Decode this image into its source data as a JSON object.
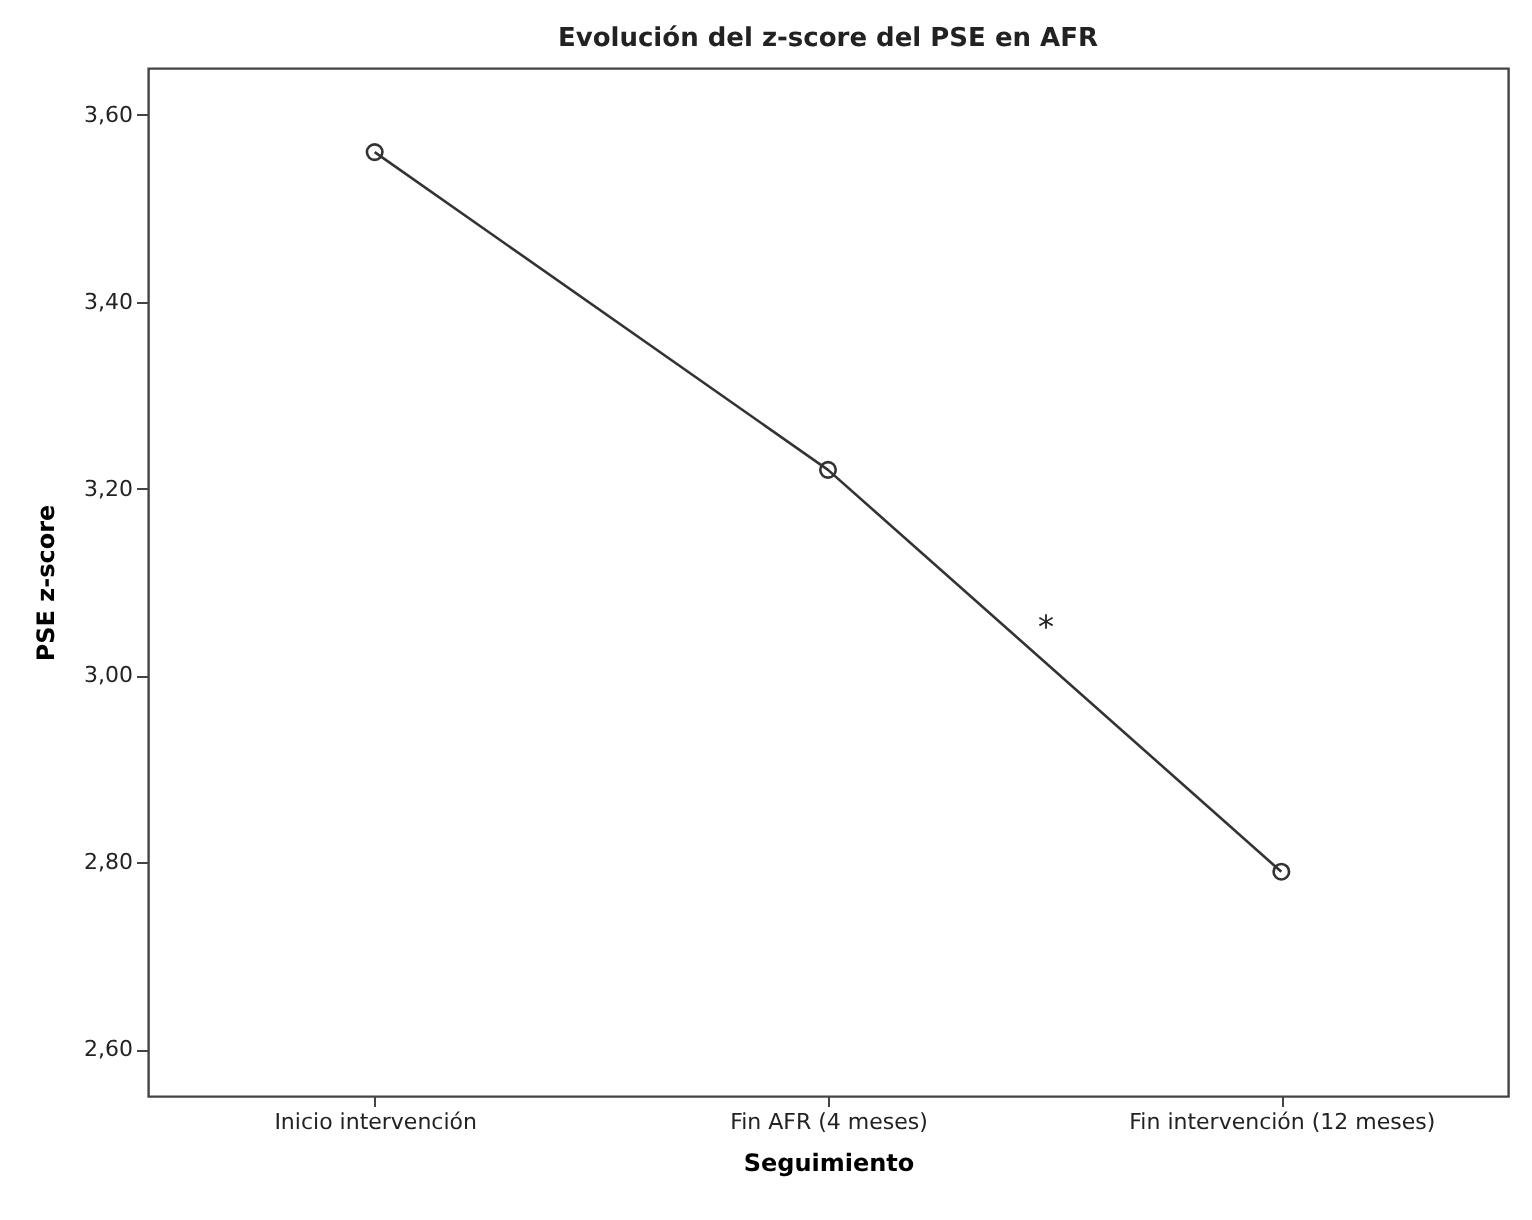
{
  "chart_data": {
    "type": "line",
    "title": "Evolución del z-score del PSE en AFR",
    "xlabel": "Seguimiento",
    "ylabel": "PSE z-score",
    "categories": [
      "Inicio intervención",
      "Fin AFR (4 meses)",
      "Fin intervención (12 meses)"
    ],
    "series": [
      {
        "color": "#333333",
        "values": [
          3.56,
          3.22,
          2.79
        ]
      }
    ],
    "ylim": [
      2.55,
      3.65
    ],
    "yticks": [
      {
        "value": 2.6,
        "label": "2,60"
      },
      {
        "value": 2.8,
        "label": "2,80"
      },
      {
        "value": 3.0,
        "label": "3,00"
      },
      {
        "value": 3.2,
        "label": "3,20"
      },
      {
        "value": 3.4,
        "label": "3,40"
      },
      {
        "value": 3.6,
        "label": "3,60"
      }
    ],
    "annotations": [
      "*"
    ],
    "marker": "circle",
    "line_style": "solid",
    "grid": false,
    "legend": false
  }
}
